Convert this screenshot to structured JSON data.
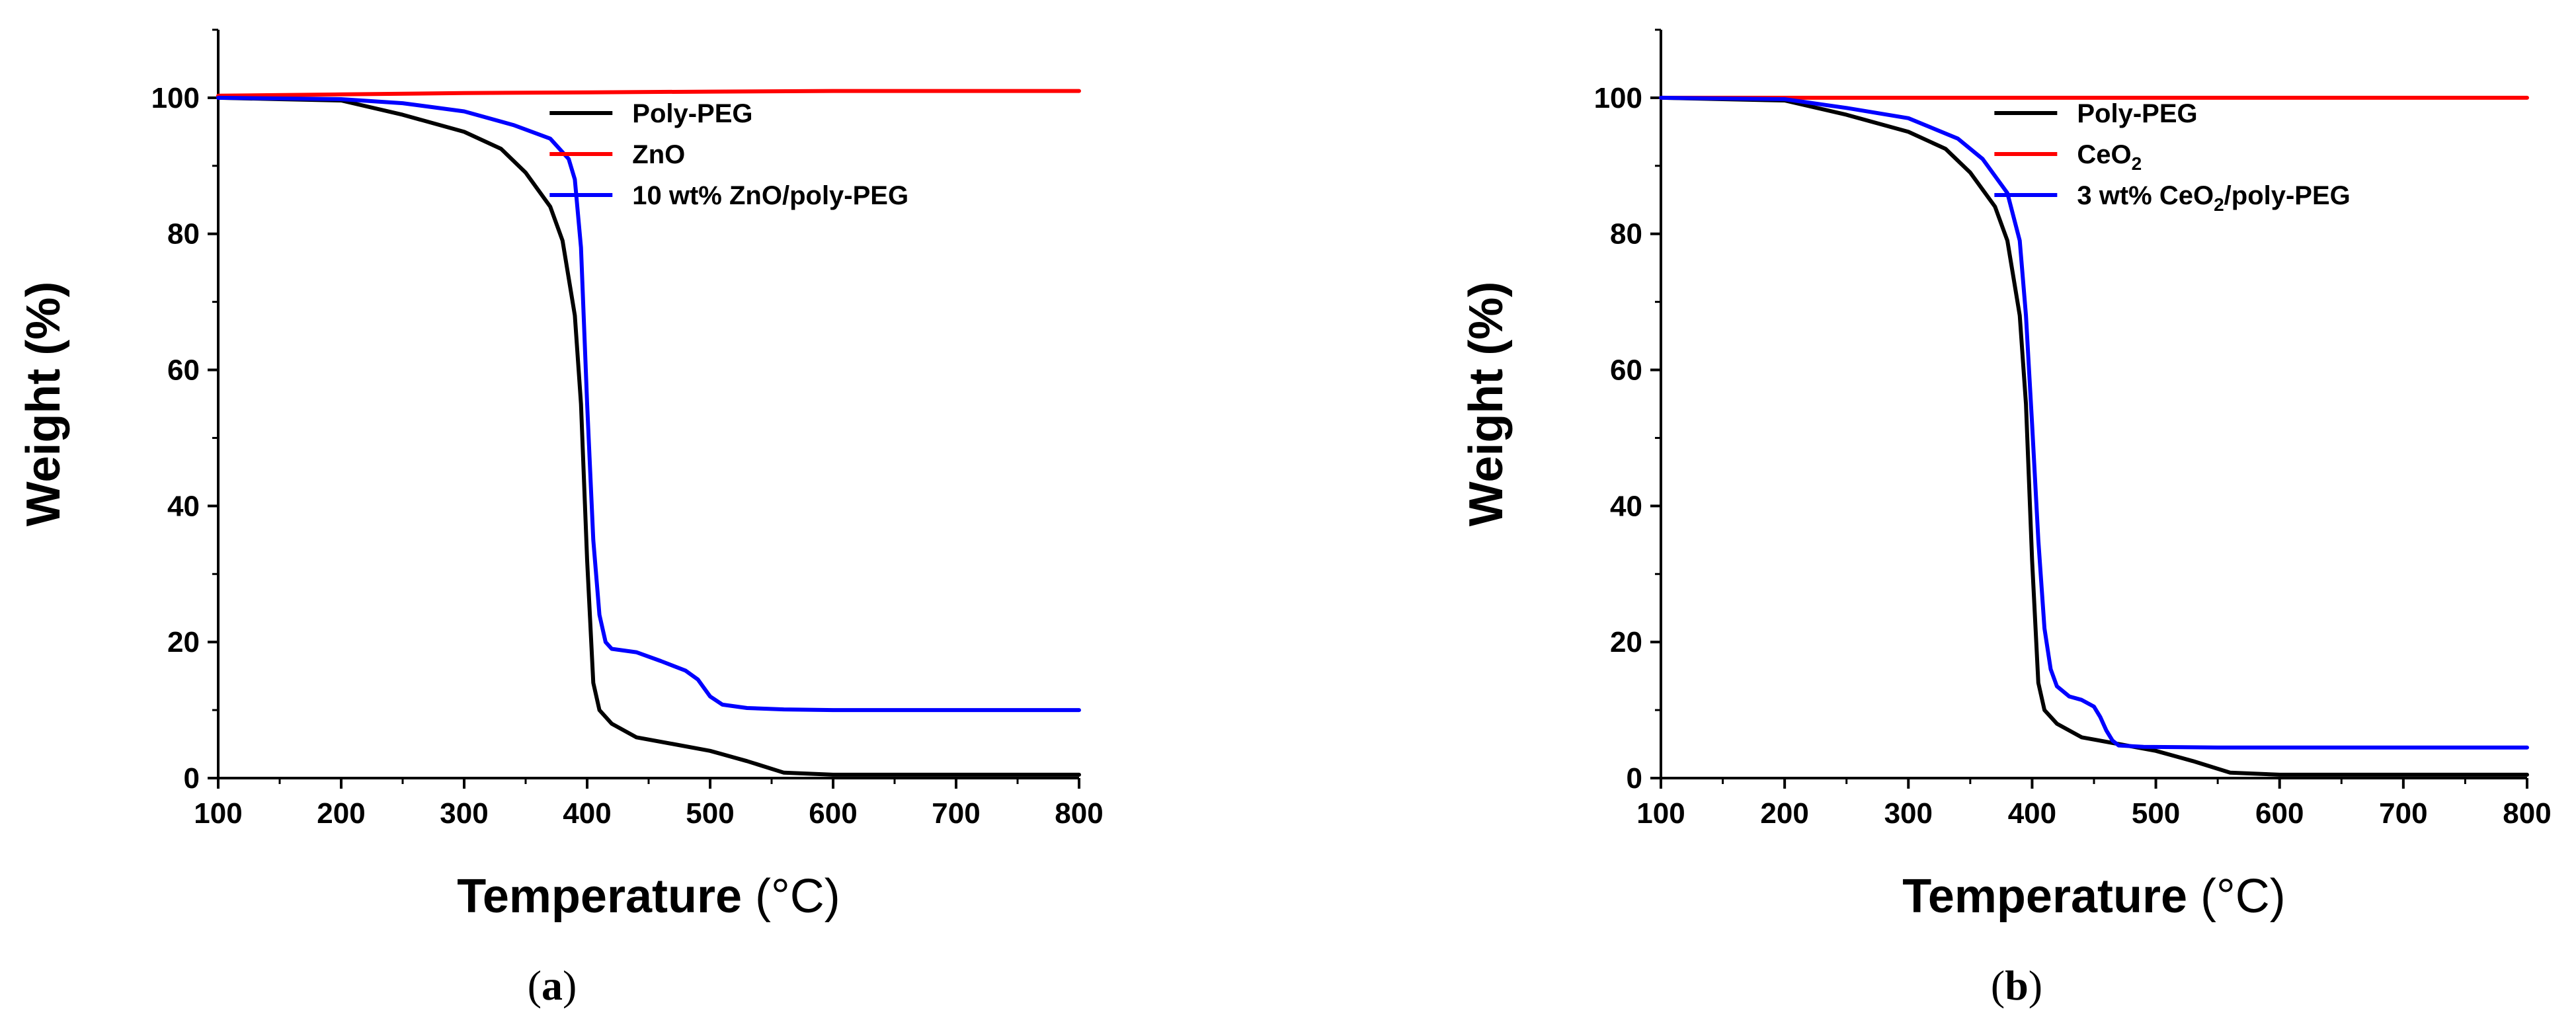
{
  "figure": {
    "panels": [
      {
        "label": "(a)",
        "label_letter": "a"
      },
      {
        "label": "(b)",
        "label_letter": "b"
      }
    ]
  },
  "chart_data": [
    {
      "type": "line",
      "panel": "a",
      "title": "",
      "xlabel": "Temperature",
      "xlabel_unit": "(°C)",
      "ylabel": "Weight (%)",
      "xlim": [
        100,
        800
      ],
      "ylim": [
        0,
        110
      ],
      "xticks": [
        100,
        200,
        300,
        400,
        500,
        600,
        700,
        800
      ],
      "yticks": [
        0,
        20,
        40,
        60,
        80,
        100
      ],
      "legend_position": "top-right",
      "series": [
        {
          "name": "Poly-PEG",
          "color": "#000000",
          "points": [
            [
              100,
              100
            ],
            [
              150,
              99.8
            ],
            [
              200,
              99.6
            ],
            [
              250,
              97.5
            ],
            [
              300,
              95
            ],
            [
              330,
              92.5
            ],
            [
              350,
              89
            ],
            [
              370,
              84
            ],
            [
              380,
              79
            ],
            [
              390,
              68
            ],
            [
              395,
              55
            ],
            [
              400,
              32
            ],
            [
              405,
              14
            ],
            [
              410,
              10
            ],
            [
              420,
              8
            ],
            [
              440,
              6
            ],
            [
              470,
              5
            ],
            [
              500,
              4
            ],
            [
              530,
              2.5
            ],
            [
              560,
              0.8
            ],
            [
              600,
              0.5
            ],
            [
              700,
              0.5
            ],
            [
              800,
              0.5
            ]
          ]
        },
        {
          "name": "ZnO",
          "color": "#ff0000",
          "points": [
            [
              100,
              100.3
            ],
            [
              200,
              100.5
            ],
            [
              300,
              100.7
            ],
            [
              400,
              100.8
            ],
            [
              500,
              100.9
            ],
            [
              600,
              101
            ],
            [
              700,
              101
            ],
            [
              800,
              101
            ]
          ]
        },
        {
          "name": "10 wt% ZnO/poly-PEG",
          "color": "#0000ff",
          "points": [
            [
              100,
              100
            ],
            [
              200,
              99.8
            ],
            [
              250,
              99.2
            ],
            [
              300,
              98
            ],
            [
              340,
              96
            ],
            [
              370,
              94
            ],
            [
              385,
              91
            ],
            [
              390,
              88
            ],
            [
              395,
              78
            ],
            [
              400,
              55
            ],
            [
              405,
              35
            ],
            [
              410,
              24
            ],
            [
              415,
              20
            ],
            [
              420,
              19
            ],
            [
              440,
              18.5
            ],
            [
              460,
              17.2
            ],
            [
              480,
              15.8
            ],
            [
              490,
              14.5
            ],
            [
              500,
              12
            ],
            [
              510,
              10.8
            ],
            [
              530,
              10.3
            ],
            [
              560,
              10.1
            ],
            [
              600,
              10
            ],
            [
              700,
              10
            ],
            [
              800,
              10
            ]
          ]
        }
      ]
    },
    {
      "type": "line",
      "panel": "b",
      "title": "",
      "xlabel": "Temperature",
      "xlabel_unit": "(°C)",
      "ylabel": "Weight (%)",
      "xlim": [
        100,
        800
      ],
      "ylim": [
        0,
        110
      ],
      "xticks": [
        100,
        200,
        300,
        400,
        500,
        600,
        700,
        800
      ],
      "yticks": [
        0,
        20,
        40,
        60,
        80,
        100
      ],
      "legend_position": "top-right",
      "series": [
        {
          "name": "Poly-PEG",
          "color": "#000000",
          "points": [
            [
              100,
              100
            ],
            [
              150,
              99.8
            ],
            [
              200,
              99.6
            ],
            [
              250,
              97.5
            ],
            [
              300,
              95
            ],
            [
              330,
              92.5
            ],
            [
              350,
              89
            ],
            [
              370,
              84
            ],
            [
              380,
              79
            ],
            [
              390,
              68
            ],
            [
              395,
              55
            ],
            [
              400,
              32
            ],
            [
              405,
              14
            ],
            [
              410,
              10
            ],
            [
              420,
              8
            ],
            [
              440,
              6
            ],
            [
              470,
              5
            ],
            [
              500,
              4
            ],
            [
              530,
              2.5
            ],
            [
              560,
              0.8
            ],
            [
              600,
              0.5
            ],
            [
              700,
              0.5
            ],
            [
              800,
              0.5
            ]
          ]
        },
        {
          "name": "CeO",
          "name_subscript": "2",
          "color": "#ff0000",
          "points": [
            [
              100,
              100
            ],
            [
              200,
              100
            ],
            [
              300,
              100
            ],
            [
              400,
              100
            ],
            [
              500,
              100
            ],
            [
              600,
              100
            ],
            [
              700,
              100
            ],
            [
              800,
              100
            ]
          ]
        },
        {
          "name": "3 wt% CeO",
          "name_subscript": "2",
          "name_suffix": "/poly-PEG",
          "color": "#0000ff",
          "points": [
            [
              100,
              100
            ],
            [
              200,
              99.8
            ],
            [
              250,
              98.5
            ],
            [
              300,
              97
            ],
            [
              340,
              94
            ],
            [
              360,
              91
            ],
            [
              380,
              86
            ],
            [
              390,
              79
            ],
            [
              395,
              68
            ],
            [
              400,
              52
            ],
            [
              405,
              35
            ],
            [
              410,
              22
            ],
            [
              415,
              16
            ],
            [
              420,
              13.5
            ],
            [
              430,
              12
            ],
            [
              440,
              11.5
            ],
            [
              450,
              10.5
            ],
            [
              455,
              9
            ],
            [
              460,
              7
            ],
            [
              465,
              5.5
            ],
            [
              470,
              4.8
            ],
            [
              490,
              4.6
            ],
            [
              550,
              4.5
            ],
            [
              600,
              4.5
            ],
            [
              700,
              4.5
            ],
            [
              800,
              4.5
            ]
          ]
        }
      ]
    }
  ]
}
